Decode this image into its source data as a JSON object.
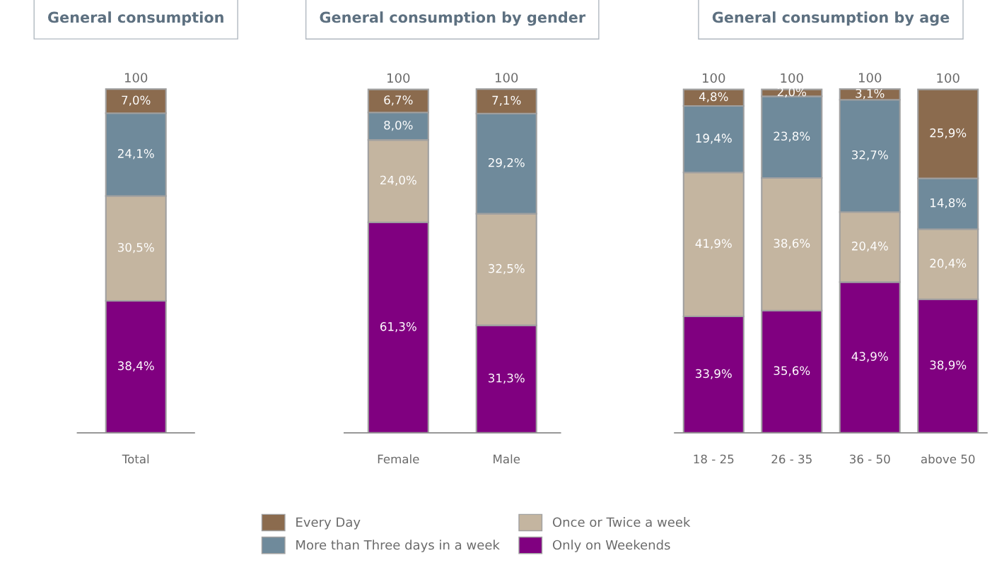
{
  "chart_data": [
    {
      "type": "bar",
      "title": "General consumption",
      "stacked": true,
      "legend": "bottom",
      "grid": false,
      "categories": [
        "Total"
      ],
      "totals": [
        "100"
      ],
      "series": [
        {
          "name": "Only on Weekends",
          "color": "#800080",
          "values": [
            38.4
          ],
          "value_labels": [
            "38,4%"
          ]
        },
        {
          "name": "Once or Twice a week",
          "color": "#c4b5a0",
          "values": [
            30.5
          ],
          "value_labels": [
            "30,5%"
          ]
        },
        {
          "name": "More than Three days in a week",
          "color": "#6f8a9b",
          "values": [
            24.1
          ],
          "value_labels": [
            "24,1%"
          ]
        },
        {
          "name": "Every Day",
          "color": "#8b6b4e",
          "values": [
            7.0
          ],
          "value_labels": [
            "7,0%"
          ]
        }
      ]
    },
    {
      "type": "bar",
      "title": "General consumption by gender",
      "stacked": true,
      "grid": false,
      "categories": [
        "Female",
        "Male"
      ],
      "totals": [
        "100",
        "100"
      ],
      "series": [
        {
          "color": "#800080",
          "values": [
            61.3,
            31.3
          ],
          "value_labels": [
            "61,3%",
            "31,3%"
          ]
        },
        {
          "color": "#c4b5a0",
          "values": [
            24.0,
            32.5
          ],
          "value_labels": [
            "24,0%",
            "32,5%"
          ]
        },
        {
          "color": "#6f8a9b",
          "values": [
            8.0,
            29.2
          ],
          "value_labels": [
            "8,0%",
            "29,2%"
          ]
        },
        {
          "color": "#8b6b4e",
          "values": [
            6.7,
            7.1
          ],
          "value_labels": [
            "6,7%",
            "7,1%"
          ]
        }
      ]
    },
    {
      "type": "bar",
      "title": "General consumption by age",
      "stacked": true,
      "grid": false,
      "categories": [
        "18 - 25",
        "26 - 35",
        "36 - 50",
        "above 50"
      ],
      "totals": [
        "100",
        "100",
        "100",
        "100"
      ],
      "series": [
        {
          "color": "#800080",
          "values": [
            33.9,
            35.6,
            43.9,
            38.9
          ],
          "value_labels": [
            "33,9%",
            "35,6%",
            "43,9%",
            "38,9%"
          ]
        },
        {
          "color": "#c4b5a0",
          "values": [
            41.9,
            38.6,
            20.4,
            20.4
          ],
          "value_labels": [
            "41,9%",
            "38,6%",
            "20,4%",
            "20,4%"
          ]
        },
        {
          "color": "#6f8a9b",
          "values": [
            19.4,
            23.8,
            32.7,
            14.8
          ],
          "value_labels": [
            "19,4%",
            "23,8%",
            "32,7%",
            "14,8%"
          ]
        },
        {
          "color": "#8b6b4e",
          "values": [
            4.8,
            2.0,
            3.1,
            25.9
          ],
          "value_labels": [
            "4,8%",
            "2,0%",
            "3,1%",
            "25,9%"
          ]
        }
      ]
    }
  ]
}
